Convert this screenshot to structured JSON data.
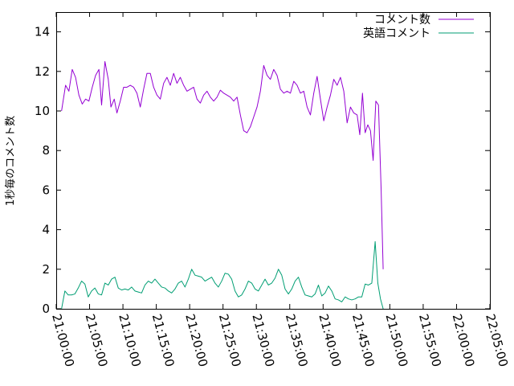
{
  "chart_data": {
    "type": "line",
    "ylabel": "1秒毎のコメント数",
    "ylim": [
      0,
      15
    ],
    "yticks": [
      0,
      2,
      4,
      6,
      8,
      10,
      12,
      14
    ],
    "xlim_minutes": [
      0,
      65
    ],
    "xticks": [
      {
        "m": 0,
        "label": "21:00:00"
      },
      {
        "m": 5,
        "label": "21:05:00"
      },
      {
        "m": 10,
        "label": "21:10:00"
      },
      {
        "m": 15,
        "label": "21:15:00"
      },
      {
        "m": 20,
        "label": "21:20:00"
      },
      {
        "m": 25,
        "label": "21:25:00"
      },
      {
        "m": 30,
        "label": "21:30:00"
      },
      {
        "m": 35,
        "label": "21:35:00"
      },
      {
        "m": 40,
        "label": "21:40:00"
      },
      {
        "m": 45,
        "label": "21:45:00"
      },
      {
        "m": 50,
        "label": "21:50:00"
      },
      {
        "m": 55,
        "label": "21:55:00"
      },
      {
        "m": 60,
        "label": "22:00:00"
      },
      {
        "m": 65,
        "label": "22:05:00"
      }
    ],
    "legend_position": "top-right",
    "grid": false,
    "series": [
      {
        "name": "コメント数",
        "color": "#9400d3",
        "points": [
          [
            0.8,
            10.0
          ],
          [
            1.4,
            11.3
          ],
          [
            1.9,
            11.0
          ],
          [
            2.4,
            12.1
          ],
          [
            2.9,
            11.7
          ],
          [
            3.4,
            10.8
          ],
          [
            3.9,
            10.35
          ],
          [
            4.4,
            10.6
          ],
          [
            4.9,
            10.5
          ],
          [
            5.4,
            11.2
          ],
          [
            5.9,
            11.8
          ],
          [
            6.4,
            12.1
          ],
          [
            6.8,
            10.3
          ],
          [
            7.3,
            12.5
          ],
          [
            7.8,
            11.6
          ],
          [
            8.2,
            10.2
          ],
          [
            8.7,
            10.6
          ],
          [
            9.1,
            9.9
          ],
          [
            9.6,
            10.5
          ],
          [
            10.1,
            11.2
          ],
          [
            10.6,
            11.2
          ],
          [
            11.1,
            11.3
          ],
          [
            11.6,
            11.2
          ],
          [
            12.1,
            10.9
          ],
          [
            12.6,
            10.2
          ],
          [
            13.1,
            11.1
          ],
          [
            13.6,
            11.9
          ],
          [
            14.1,
            11.9
          ],
          [
            14.6,
            11.2
          ],
          [
            15.1,
            10.8
          ],
          [
            15.6,
            10.6
          ],
          [
            16.1,
            11.4
          ],
          [
            16.6,
            11.7
          ],
          [
            17.1,
            11.3
          ],
          [
            17.6,
            11.9
          ],
          [
            18.1,
            11.4
          ],
          [
            18.6,
            11.7
          ],
          [
            19.1,
            11.3
          ],
          [
            19.6,
            11.0
          ],
          [
            20.1,
            11.1
          ],
          [
            20.6,
            11.2
          ],
          [
            21.1,
            10.6
          ],
          [
            21.6,
            10.4
          ],
          [
            22.1,
            10.8
          ],
          [
            22.6,
            11.0
          ],
          [
            23.1,
            10.7
          ],
          [
            23.6,
            10.5
          ],
          [
            24.1,
            10.7
          ],
          [
            24.6,
            11.05
          ],
          [
            25.1,
            10.9
          ],
          [
            25.6,
            10.8
          ],
          [
            26.1,
            10.7
          ],
          [
            26.6,
            10.5
          ],
          [
            27.1,
            10.7
          ],
          [
            27.6,
            9.8
          ],
          [
            28.1,
            9.0
          ],
          [
            28.6,
            8.9
          ],
          [
            29.1,
            9.2
          ],
          [
            29.6,
            9.7
          ],
          [
            30.1,
            10.2
          ],
          [
            30.6,
            11.0
          ],
          [
            31.1,
            12.3
          ],
          [
            31.6,
            11.8
          ],
          [
            32.1,
            11.6
          ],
          [
            32.6,
            12.1
          ],
          [
            33.1,
            11.8
          ],
          [
            33.6,
            11.1
          ],
          [
            34.1,
            10.9
          ],
          [
            34.6,
            11.0
          ],
          [
            35.1,
            10.9
          ],
          [
            35.6,
            11.5
          ],
          [
            36.1,
            11.3
          ],
          [
            36.6,
            10.9
          ],
          [
            37.1,
            11.0
          ],
          [
            37.6,
            10.2
          ],
          [
            38.1,
            9.8
          ],
          [
            38.6,
            10.9
          ],
          [
            39.1,
            11.75
          ],
          [
            39.6,
            10.6
          ],
          [
            40.1,
            9.5
          ],
          [
            40.6,
            10.2
          ],
          [
            41.1,
            10.8
          ],
          [
            41.6,
            11.6
          ],
          [
            42.1,
            11.3
          ],
          [
            42.6,
            11.7
          ],
          [
            43.1,
            11.0
          ],
          [
            43.6,
            9.4
          ],
          [
            44.1,
            10.2
          ],
          [
            44.6,
            9.9
          ],
          [
            45.1,
            9.8
          ],
          [
            45.5,
            8.8
          ],
          [
            45.9,
            10.9
          ],
          [
            46.3,
            8.9
          ],
          [
            46.7,
            9.3
          ],
          [
            47.1,
            9.0
          ],
          [
            47.5,
            7.5
          ],
          [
            47.9,
            10.5
          ],
          [
            48.3,
            10.3
          ],
          [
            48.7,
            6.0
          ],
          [
            49.0,
            2.0
          ]
        ]
      },
      {
        "name": "英語コメント",
        "color": "#009e73",
        "points": [
          [
            0.8,
            0.0
          ],
          [
            1.3,
            0.9
          ],
          [
            1.8,
            0.7
          ],
          [
            2.3,
            0.7
          ],
          [
            2.8,
            0.75
          ],
          [
            3.3,
            1.05
          ],
          [
            3.8,
            1.4
          ],
          [
            4.3,
            1.25
          ],
          [
            4.8,
            0.6
          ],
          [
            5.3,
            0.9
          ],
          [
            5.8,
            1.05
          ],
          [
            6.3,
            0.75
          ],
          [
            6.8,
            0.7
          ],
          [
            7.3,
            1.3
          ],
          [
            7.8,
            1.2
          ],
          [
            8.3,
            1.5
          ],
          [
            8.8,
            1.6
          ],
          [
            9.3,
            1.05
          ],
          [
            9.8,
            0.95
          ],
          [
            10.3,
            1.0
          ],
          [
            10.8,
            0.95
          ],
          [
            11.3,
            1.1
          ],
          [
            11.8,
            0.9
          ],
          [
            12.3,
            0.85
          ],
          [
            12.8,
            0.8
          ],
          [
            13.3,
            1.2
          ],
          [
            13.8,
            1.4
          ],
          [
            14.3,
            1.3
          ],
          [
            14.8,
            1.5
          ],
          [
            15.3,
            1.3
          ],
          [
            15.8,
            1.1
          ],
          [
            16.3,
            1.05
          ],
          [
            16.8,
            0.9
          ],
          [
            17.3,
            0.8
          ],
          [
            17.8,
            1.0
          ],
          [
            18.3,
            1.3
          ],
          [
            18.8,
            1.4
          ],
          [
            19.3,
            1.1
          ],
          [
            19.8,
            1.5
          ],
          [
            20.3,
            2.0
          ],
          [
            20.8,
            1.7
          ],
          [
            21.3,
            1.65
          ],
          [
            21.8,
            1.6
          ],
          [
            22.3,
            1.4
          ],
          [
            22.8,
            1.5
          ],
          [
            23.3,
            1.6
          ],
          [
            23.8,
            1.3
          ],
          [
            24.3,
            1.1
          ],
          [
            24.8,
            1.4
          ],
          [
            25.3,
            1.8
          ],
          [
            25.8,
            1.75
          ],
          [
            26.3,
            1.5
          ],
          [
            26.8,
            0.9
          ],
          [
            27.3,
            0.6
          ],
          [
            27.8,
            0.7
          ],
          [
            28.3,
            1.0
          ],
          [
            28.8,
            1.4
          ],
          [
            29.3,
            1.3
          ],
          [
            29.8,
            1.0
          ],
          [
            30.3,
            0.9
          ],
          [
            30.8,
            1.2
          ],
          [
            31.3,
            1.5
          ],
          [
            31.8,
            1.2
          ],
          [
            32.3,
            1.3
          ],
          [
            32.8,
            1.55
          ],
          [
            33.3,
            2.0
          ],
          [
            33.8,
            1.7
          ],
          [
            34.3,
            1.0
          ],
          [
            34.8,
            0.75
          ],
          [
            35.3,
            1.0
          ],
          [
            35.8,
            1.4
          ],
          [
            36.3,
            1.6
          ],
          [
            36.8,
            1.1
          ],
          [
            37.3,
            0.7
          ],
          [
            37.8,
            0.65
          ],
          [
            38.3,
            0.6
          ],
          [
            38.8,
            0.75
          ],
          [
            39.3,
            1.2
          ],
          [
            39.8,
            0.65
          ],
          [
            40.3,
            0.8
          ],
          [
            40.8,
            1.15
          ],
          [
            41.3,
            0.9
          ],
          [
            41.8,
            0.5
          ],
          [
            42.3,
            0.45
          ],
          [
            42.8,
            0.35
          ],
          [
            43.3,
            0.6
          ],
          [
            43.8,
            0.5
          ],
          [
            44.3,
            0.45
          ],
          [
            44.8,
            0.5
          ],
          [
            45.3,
            0.6
          ],
          [
            45.8,
            0.6
          ],
          [
            46.3,
            1.25
          ],
          [
            46.8,
            1.2
          ],
          [
            47.3,
            1.3
          ],
          [
            47.8,
            3.4
          ],
          [
            48.2,
            1.3
          ],
          [
            48.6,
            0.5
          ],
          [
            49.0,
            0.0
          ]
        ]
      }
    ]
  }
}
